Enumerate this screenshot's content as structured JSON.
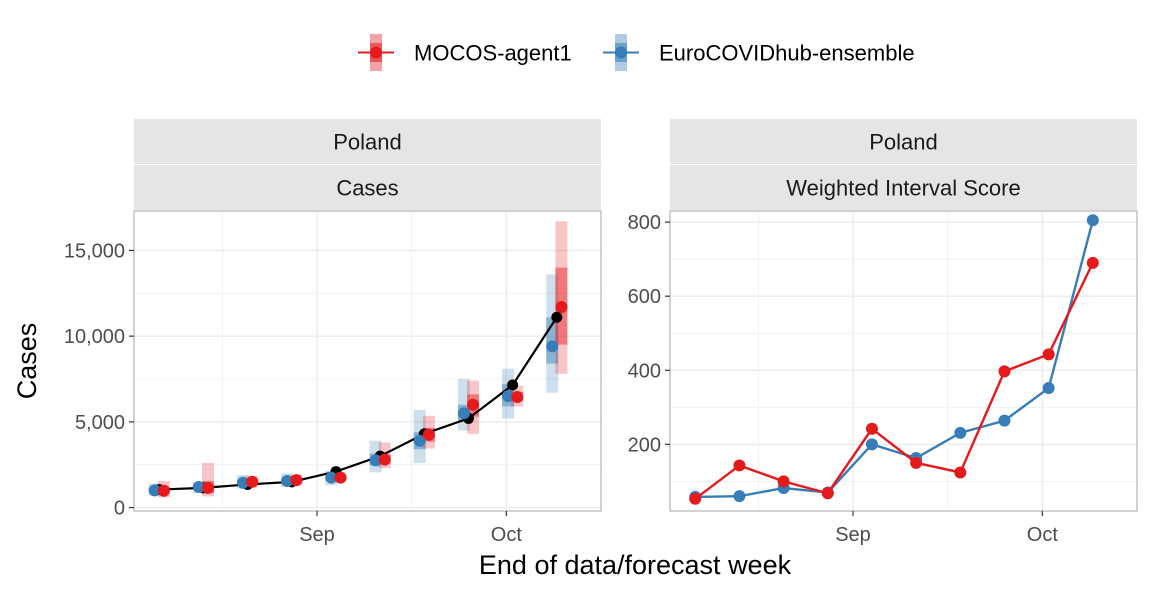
{
  "colors": {
    "model": "#E41A1C",
    "ensemble": "#377EB8",
    "truth": "#000000",
    "strip_bg": "#E5E5E5",
    "grid": "#EBEBEB",
    "border": "#B3B3B3"
  },
  "legend": [
    {
      "name": "MOCOS-agent1",
      "color": "#E41A1C"
    },
    {
      "name": "EuroCOVIDhub-ensemble",
      "color": "#377EB8"
    }
  ],
  "xlabel": "End of data/forecast week",
  "chart_data": [
    {
      "type": "line",
      "strip_top": "Poland",
      "strip_bottom": "Cases",
      "ylabel": "Cases",
      "x": [
        "2021-08-07",
        "2021-08-14",
        "2021-08-21",
        "2021-08-28",
        "2021-09-04",
        "2021-09-11",
        "2021-09-18",
        "2021-09-25",
        "2021-10-02",
        "2021-10-09"
      ],
      "x_ticks": [
        {
          "date": "2021-09-01",
          "label": "Sep"
        },
        {
          "date": "2021-10-01",
          "label": "Oct"
        }
      ],
      "y_ticks": [
        {
          "value": 0,
          "label": "0"
        },
        {
          "value": 5000,
          "label": "5,000"
        },
        {
          "value": 10000,
          "label": "10,000"
        },
        {
          "value": 15000,
          "label": "15,000"
        }
      ],
      "ylim": [
        -200,
        17300
      ],
      "truth": [
        1050,
        1150,
        1350,
        1500,
        2100,
        3000,
        4300,
        5200,
        7150,
        11100
      ],
      "series": [
        {
          "name": "MOCOS-agent1",
          "median": [
            980,
            1150,
            1500,
            1600,
            1750,
            2800,
            4250,
            6000,
            6450,
            11700
          ],
          "lower90": [
            600,
            650,
            1200,
            1300,
            1550,
            2300,
            3450,
            4300,
            5900,
            7800
          ],
          "upper90": [
            1550,
            2600,
            1850,
            1900,
            1950,
            3800,
            5350,
            7400,
            7100,
            16700
          ],
          "lower50": [
            850,
            850,
            1350,
            1450,
            1650,
            2550,
            3850,
            5300,
            6200,
            9500
          ],
          "upper50": [
            1200,
            1550,
            1650,
            1750,
            1850,
            3100,
            4650,
            6600,
            6750,
            14000
          ]
        },
        {
          "name": "EuroCOVIDhub-ensemble",
          "median": [
            1000,
            1200,
            1450,
            1550,
            1750,
            2750,
            3900,
            5500,
            6500,
            9400
          ],
          "lower90": [
            700,
            850,
            1100,
            1200,
            1300,
            2050,
            2600,
            4500,
            5200,
            6700
          ],
          "upper90": [
            1400,
            1500,
            1900,
            2000,
            2150,
            3900,
            5700,
            7500,
            8100,
            13600
          ],
          "lower50": [
            900,
            1050,
            1300,
            1400,
            1550,
            2450,
            3400,
            5050,
            5900,
            8400
          ],
          "upper50": [
            1150,
            1300,
            1600,
            1700,
            1950,
            3150,
            4400,
            6000,
            7200,
            11100
          ]
        }
      ]
    },
    {
      "type": "line",
      "strip_top": "Poland",
      "strip_bottom": "Weighted Interval Score",
      "x": [
        "2021-08-07",
        "2021-08-14",
        "2021-08-21",
        "2021-08-28",
        "2021-09-04",
        "2021-09-11",
        "2021-09-18",
        "2021-09-25",
        "2021-10-02",
        "2021-10-09"
      ],
      "x_ticks": [
        {
          "date": "2021-09-01",
          "label": "Sep"
        },
        {
          "date": "2021-10-01",
          "label": "Oct"
        }
      ],
      "y_ticks": [
        {
          "value": 200,
          "label": "200"
        },
        {
          "value": 400,
          "label": "400"
        },
        {
          "value": 600,
          "label": "600"
        },
        {
          "value": 800,
          "label": "800"
        }
      ],
      "ylim": [
        20,
        830
      ],
      "series": [
        {
          "name": "MOCOS-agent1",
          "values": [
            53,
            143,
            100,
            68,
            242,
            150,
            124,
            397,
            443,
            690
          ]
        },
        {
          "name": "EuroCOVIDhub-ensemble",
          "values": [
            58,
            60,
            82,
            70,
            200,
            163,
            231,
            264,
            352,
            805
          ]
        }
      ]
    }
  ]
}
